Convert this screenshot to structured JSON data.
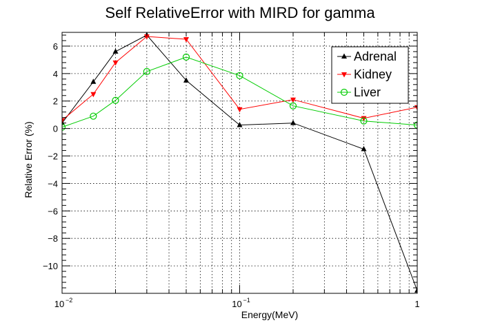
{
  "chart_data": {
    "type": "line",
    "title": "Self RelativeError with MIRD for gamma",
    "xlabel": "Energy(MeV)",
    "ylabel": "Relative Error (%)",
    "xscale": "log",
    "xlim": [
      0.01,
      1
    ],
    "ylim": [
      -12,
      7
    ],
    "grid": true,
    "legend_position": "top-right",
    "x_ticks": [
      {
        "value": 0.01,
        "base": "10",
        "exp": "−2"
      },
      {
        "value": 0.1,
        "base": "10",
        "exp": "−1"
      },
      {
        "value": 1,
        "base": "1",
        "exp": ""
      }
    ],
    "y_ticks": [
      {
        "value": -10,
        "label": "−10"
      },
      {
        "value": -8,
        "label": "−8"
      },
      {
        "value": -6,
        "label": "−6"
      },
      {
        "value": -4,
        "label": "−4"
      },
      {
        "value": -2,
        "label": "−2"
      },
      {
        "value": 0,
        "label": "0"
      },
      {
        "value": 2,
        "label": "2"
      },
      {
        "value": 4,
        "label": "4"
      },
      {
        "value": 6,
        "label": "6"
      }
    ],
    "series": [
      {
        "name": "Adrenal",
        "color": "#000000",
        "marker": "triangle-up",
        "x": [
          0.01,
          0.015,
          0.02,
          0.03,
          0.05,
          0.1,
          0.2,
          0.5,
          1.0
        ],
        "y": [
          0.4,
          3.4,
          5.6,
          6.8,
          3.5,
          0.25,
          0.4,
          -1.5,
          -11.8
        ]
      },
      {
        "name": "Kidney",
        "color": "#ff0000",
        "marker": "triangle-down",
        "x": [
          0.01,
          0.015,
          0.02,
          0.03,
          0.05,
          0.1,
          0.2,
          0.5,
          1.0
        ],
        "y": [
          0.6,
          2.5,
          4.8,
          6.7,
          6.5,
          1.4,
          2.1,
          0.75,
          1.55
        ]
      },
      {
        "name": "Liver",
        "color": "#00cc00",
        "marker": "circle-open",
        "x": [
          0.01,
          0.015,
          0.02,
          0.03,
          0.05,
          0.1,
          0.2,
          0.5,
          1.0
        ],
        "y": [
          0.1,
          0.9,
          2.05,
          4.15,
          5.2,
          3.85,
          1.65,
          0.55,
          0.25
        ]
      }
    ]
  }
}
